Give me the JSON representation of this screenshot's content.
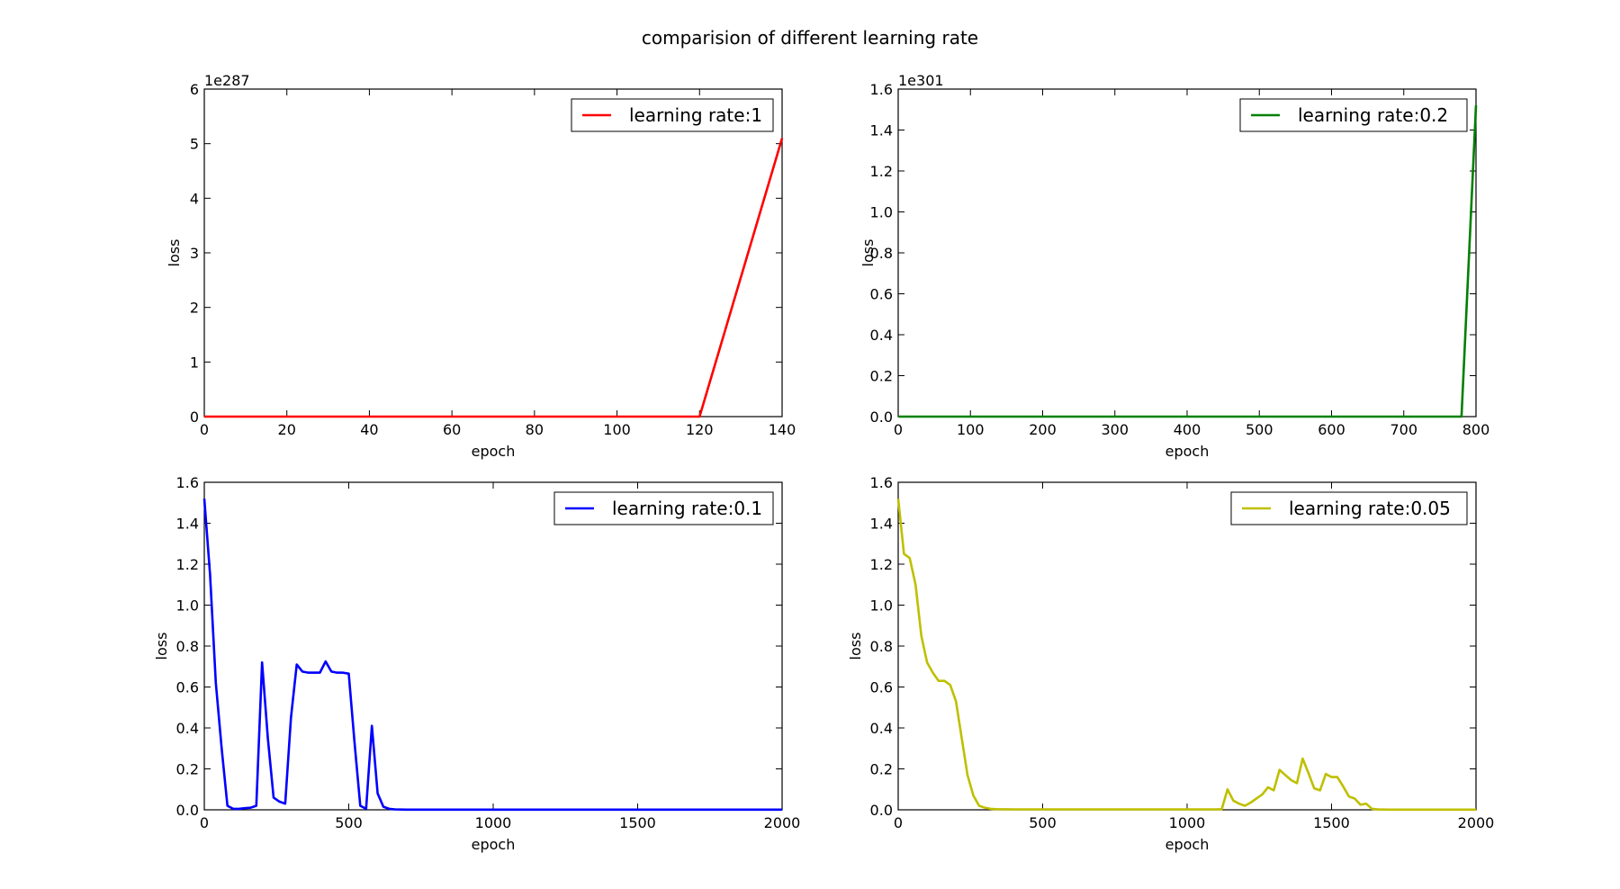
{
  "figure": {
    "title": "comparision of different learning rate"
  },
  "chart_data": [
    {
      "type": "line",
      "xlabel": "epoch",
      "ylabel": "loss",
      "offset_text": "1e287",
      "xlim": [
        0,
        140
      ],
      "ylim": [
        0,
        6
      ],
      "xticks": [
        0,
        20,
        40,
        60,
        80,
        100,
        120,
        140
      ],
      "yticks": [
        0,
        1,
        2,
        3,
        4,
        5,
        6
      ],
      "ytick_labels": [
        "0",
        "1",
        "2",
        "3",
        "4",
        "5",
        "6"
      ],
      "legend_position": "top-right",
      "series": [
        {
          "name": "learning rate:1",
          "color": "#ff0000",
          "x": [
            0,
            20,
            40,
            60,
            80,
            100,
            120,
            140
          ],
          "y": [
            0,
            0,
            0,
            0,
            0,
            0,
            0,
            5.1
          ]
        }
      ]
    },
    {
      "type": "line",
      "xlabel": "epoch",
      "ylabel": "loss",
      "offset_text": "1e301",
      "xlim": [
        0,
        800
      ],
      "ylim": [
        0,
        1.6
      ],
      "xticks": [
        0,
        100,
        200,
        300,
        400,
        500,
        600,
        700,
        800
      ],
      "yticks": [
        0,
        0.2,
        0.4,
        0.6,
        0.8,
        1.0,
        1.2,
        1.4,
        1.6
      ],
      "ytick_labels": [
        "0.0",
        "0.2",
        "0.4",
        "0.6",
        "0.8",
        "1.0",
        "1.2",
        "1.4",
        "1.6"
      ],
      "legend_position": "top-right",
      "series": [
        {
          "name": "learning rate:0.2",
          "color": "#008000",
          "x": [
            0,
            100,
            200,
            300,
            400,
            500,
            600,
            700,
            780,
            800
          ],
          "y": [
            0,
            0,
            0,
            0,
            0,
            0,
            0,
            0,
            0,
            1.52
          ]
        }
      ]
    },
    {
      "type": "line",
      "xlabel": "epoch",
      "ylabel": "loss",
      "offset_text": "",
      "xlim": [
        0,
        2000
      ],
      "ylim": [
        0,
        1.6
      ],
      "xticks": [
        0,
        500,
        1000,
        1500,
        2000
      ],
      "yticks": [
        0,
        0.2,
        0.4,
        0.6,
        0.8,
        1.0,
        1.2,
        1.4,
        1.6
      ],
      "ytick_labels": [
        "0.0",
        "0.2",
        "0.4",
        "0.6",
        "0.8",
        "1.0",
        "1.2",
        "1.4",
        "1.6"
      ],
      "legend_position": "top-right",
      "series": [
        {
          "name": "learning rate:0.1",
          "color": "#0000ff",
          "x": [
            0,
            20,
            40,
            60,
            80,
            100,
            120,
            140,
            160,
            180,
            200,
            220,
            240,
            260,
            280,
            300,
            320,
            340,
            360,
            380,
            400,
            420,
            440,
            460,
            480,
            500,
            520,
            540,
            560,
            580,
            600,
            620,
            640,
            660,
            700,
            800,
            1000,
            1500,
            2000
          ],
          "y": [
            1.52,
            1.15,
            0.62,
            0.3,
            0.02,
            0.005,
            0.005,
            0.008,
            0.01,
            0.02,
            0.72,
            0.35,
            0.06,
            0.04,
            0.03,
            0.45,
            0.71,
            0.675,
            0.67,
            0.67,
            0.67,
            0.725,
            0.675,
            0.67,
            0.67,
            0.665,
            0.33,
            0.02,
            0.005,
            0.41,
            0.08,
            0.015,
            0.005,
            0.002,
            0.001,
            0.001,
            0.001,
            0.001,
            0.001
          ]
        }
      ]
    },
    {
      "type": "line",
      "xlabel": "epoch",
      "ylabel": "loss",
      "offset_text": "",
      "xlim": [
        0,
        2000
      ],
      "ylim": [
        0,
        1.6
      ],
      "xticks": [
        0,
        500,
        1000,
        1500,
        2000
      ],
      "yticks": [
        0,
        0.2,
        0.4,
        0.6,
        0.8,
        1.0,
        1.2,
        1.4,
        1.6
      ],
      "ytick_labels": [
        "0.0",
        "0.2",
        "0.4",
        "0.6",
        "0.8",
        "1.0",
        "1.2",
        "1.4",
        "1.6"
      ],
      "legend_position": "top-right",
      "series": [
        {
          "name": "learning rate:0.05",
          "color": "#bfbf00",
          "x": [
            0,
            20,
            40,
            60,
            80,
            100,
            120,
            140,
            160,
            180,
            200,
            220,
            240,
            260,
            280,
            300,
            320,
            340,
            400,
            600,
            800,
            1000,
            1100,
            1120,
            1140,
            1160,
            1180,
            1200,
            1220,
            1240,
            1260,
            1280,
            1300,
            1320,
            1340,
            1360,
            1380,
            1400,
            1420,
            1440,
            1460,
            1480,
            1500,
            1520,
            1540,
            1560,
            1580,
            1600,
            1620,
            1640,
            1660,
            1700,
            1800,
            2000
          ],
          "y": [
            1.52,
            1.25,
            1.23,
            1.1,
            0.85,
            0.72,
            0.67,
            0.63,
            0.63,
            0.61,
            0.53,
            0.35,
            0.17,
            0.07,
            0.02,
            0.01,
            0.005,
            0.003,
            0.002,
            0.002,
            0.002,
            0.002,
            0.002,
            0.003,
            0.1,
            0.045,
            0.03,
            0.02,
            0.035,
            0.055,
            0.075,
            0.11,
            0.095,
            0.195,
            0.17,
            0.145,
            0.13,
            0.25,
            0.18,
            0.105,
            0.095,
            0.175,
            0.16,
            0.16,
            0.115,
            0.065,
            0.055,
            0.025,
            0.03,
            0.005,
            0.002,
            0.001,
            0.001,
            0.001
          ]
        }
      ]
    }
  ]
}
